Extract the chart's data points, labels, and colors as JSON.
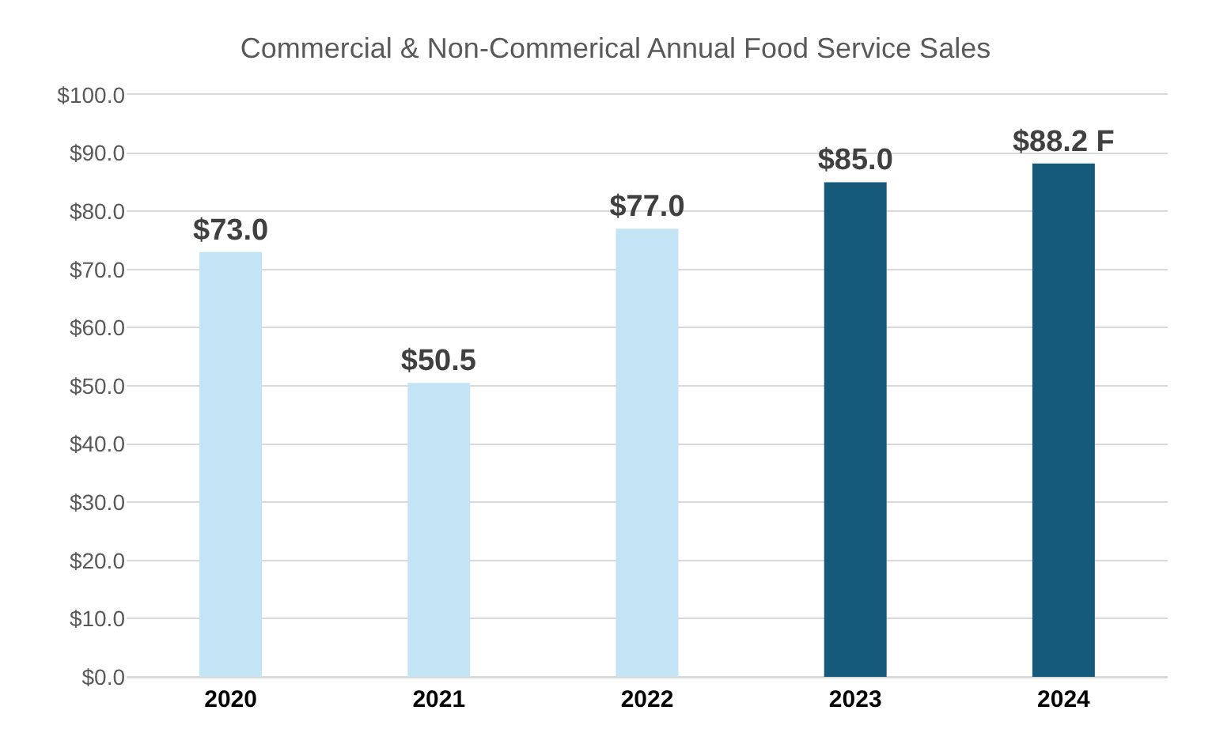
{
  "chart_data": {
    "type": "bar",
    "title": "Commercial & Non-Commerical Annual Food Service Sales",
    "categories": [
      "2020",
      "2021",
      "2022",
      "2023",
      "2024"
    ],
    "values": [
      73.0,
      50.5,
      77.0,
      85.0,
      88.2
    ],
    "value_labels": [
      "$73.0",
      "$50.5",
      "$77.0",
      "$85.0",
      "$88.2 F"
    ],
    "colors": [
      "#c3e4f4",
      "#c3e4f4",
      "#c3e4f4",
      "#155a7a",
      "#155a7a"
    ],
    "ylim": [
      0,
      100
    ],
    "yticks": [
      {
        "value": 0,
        "label": "$0.0"
      },
      {
        "value": 10,
        "label": "$10.0"
      },
      {
        "value": 20,
        "label": "$20.0"
      },
      {
        "value": 30,
        "label": "$30.0"
      },
      {
        "value": 40,
        "label": "$40.0"
      },
      {
        "value": 50,
        "label": "$50.0"
      },
      {
        "value": 60,
        "label": "$60.0"
      },
      {
        "value": 70,
        "label": "$70.0"
      },
      {
        "value": 80,
        "label": "$80.0"
      },
      {
        "value": 90,
        "label": "$90.0"
      },
      {
        "value": 100,
        "label": "$100.0"
      }
    ],
    "grid": "y"
  }
}
